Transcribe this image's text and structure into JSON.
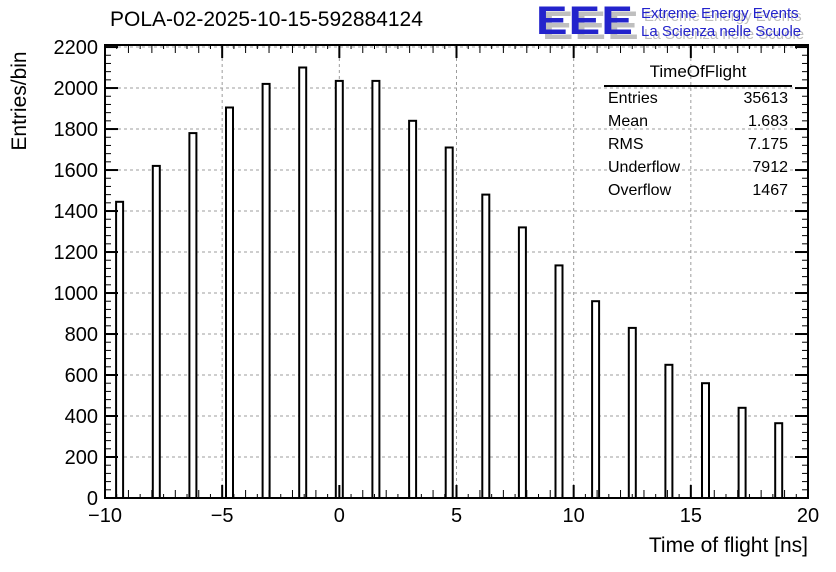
{
  "page": {
    "background": "#ffffff"
  },
  "header": {
    "title": "POLA-02-2025-10-15-592884124"
  },
  "logo": {
    "acronym": "EEE",
    "line1": "Extreme Energy Events",
    "line2": "La Scienza nelle Scuole",
    "color": "#2323cc",
    "shadow_color": "#bfbfbf"
  },
  "stats": {
    "title": "TimeOfFlight",
    "rows": [
      {
        "label": "Entries",
        "value": "35613"
      },
      {
        "label": "Mean",
        "value": "1.683"
      },
      {
        "label": "RMS",
        "value": "7.175"
      },
      {
        "label": "Underflow",
        "value": "7912"
      },
      {
        "label": "Overflow",
        "value": "1467"
      }
    ]
  },
  "chart_data": {
    "type": "bar",
    "title": "POLA-02-2025-10-15-592884124",
    "xlabel": "Time of flight [ns]",
    "ylabel": "Entries/bin",
    "xlim": [
      -10,
      20
    ],
    "ylim": [
      0,
      2210
    ],
    "grid": true,
    "bin_spacing": 1.5625,
    "bin_centers": [
      -9.375,
      -7.8125,
      -6.25,
      -4.6875,
      -3.125,
      -1.5625,
      0,
      1.5625,
      3.125,
      4.6875,
      6.25,
      7.8125,
      9.375,
      10.9375,
      12.5,
      14.0625,
      15.625,
      17.1875,
      18.75
    ],
    "values": [
      1445,
      1620,
      1780,
      1905,
      2020,
      2100,
      2035,
      2035,
      1840,
      1710,
      1480,
      1320,
      1135,
      960,
      830,
      650,
      560,
      440,
      365
    ],
    "x_ticks": [
      {
        "v": -10,
        "label": "−10"
      },
      {
        "v": -5,
        "label": "−5"
      },
      {
        "v": 0,
        "label": "0"
      },
      {
        "v": 5,
        "label": "5"
      },
      {
        "v": 10,
        "label": "10"
      },
      {
        "v": 15,
        "label": "15"
      },
      {
        "v": 20,
        "label": "20"
      }
    ],
    "y_ticks": [
      {
        "v": 0,
        "label": "0"
      },
      {
        "v": 200,
        "label": "200"
      },
      {
        "v": 400,
        "label": "400"
      },
      {
        "v": 600,
        "label": "600"
      },
      {
        "v": 800,
        "label": "800"
      },
      {
        "v": 1000,
        "label": "1000"
      },
      {
        "v": 1200,
        "label": "1200"
      },
      {
        "v": 1400,
        "label": "1400"
      },
      {
        "v": 1600,
        "label": "1600"
      },
      {
        "v": 1800,
        "label": "1800"
      },
      {
        "v": 2000,
        "label": "2000"
      },
      {
        "v": 2200,
        "label": "2200"
      }
    ],
    "x_grid": [
      -5,
      0,
      5,
      10,
      15
    ],
    "y_grid": [
      200,
      400,
      600,
      800,
      1000,
      1200,
      1400,
      1600,
      1800,
      2000,
      2200
    ],
    "x_minor_step": 1,
    "x_sub_step": 0.5,
    "y_minor_step": 40,
    "bar_fill": "#ffffff",
    "bar_stroke": "#000000",
    "frame_color": "#000000",
    "grid_color": "#9c9c9c"
  }
}
